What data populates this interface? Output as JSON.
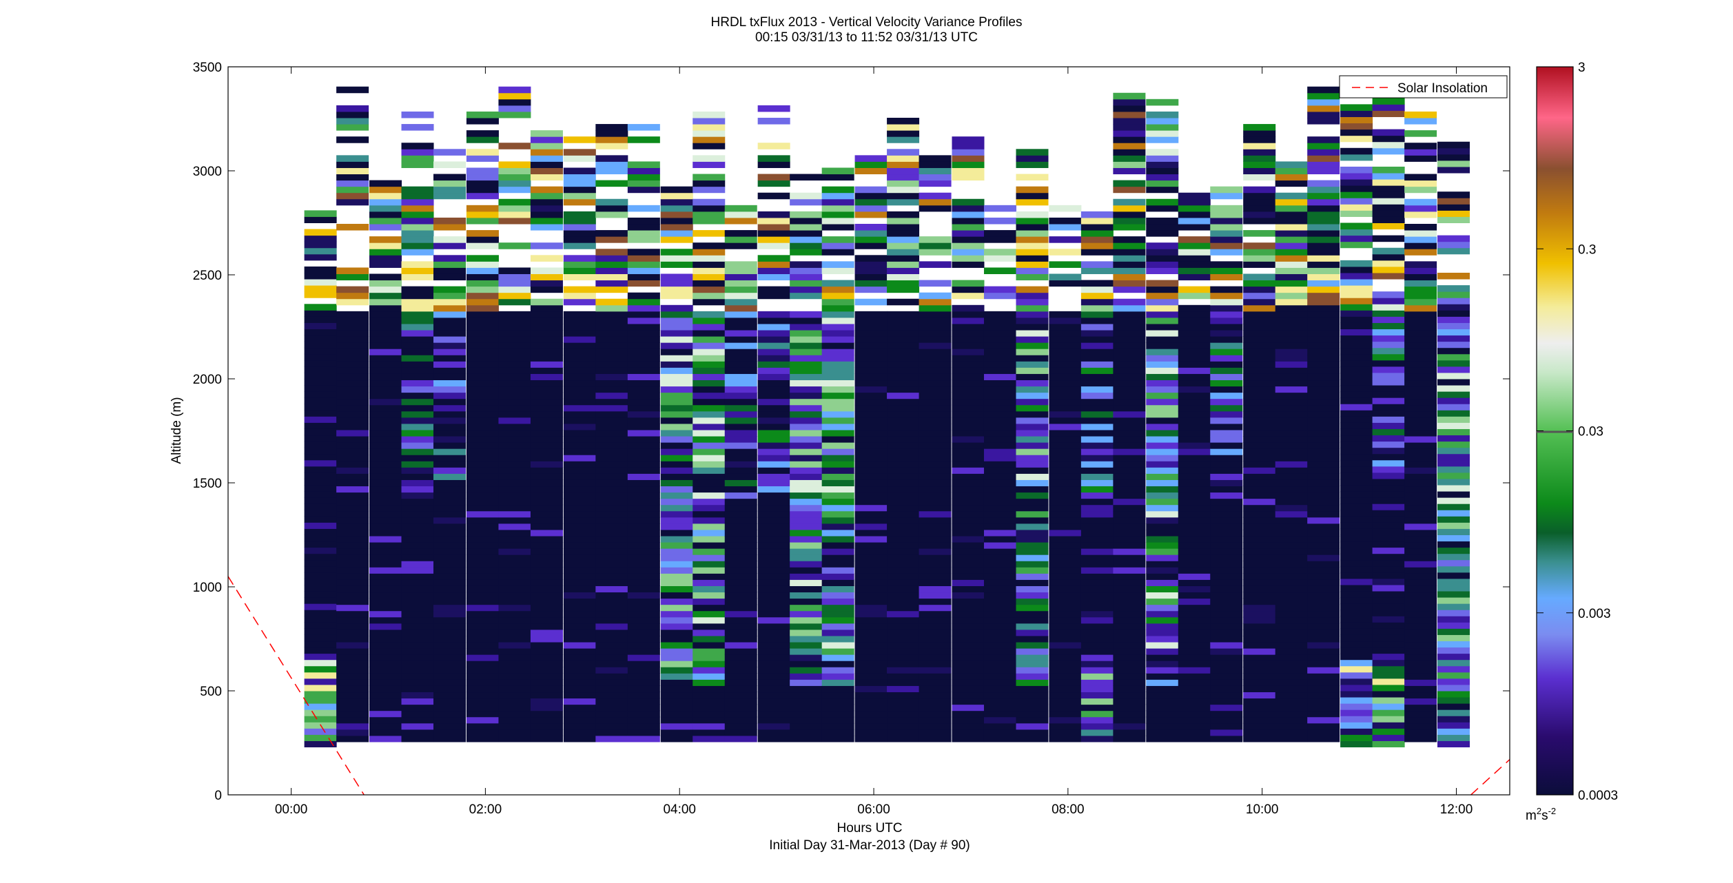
{
  "chart_data": {
    "type": "heatmap",
    "title": "HRDL txFlux 2013 - Vertical Velocity Variance Profiles",
    "subtitle": "00:15 03/31/13 to 11:52 03/31/13  UTC",
    "xlabel": "Hours UTC",
    "xlabel2": "Initial Day 31-Mar-2013 (Day # 90)",
    "ylabel": "Altitude (m)",
    "xlim": [
      -0.65,
      12.55
    ],
    "ylim": [
      0,
      3500
    ],
    "xticks": [
      0,
      2,
      4,
      6,
      8,
      10,
      12
    ],
    "xtick_labels": [
      "00:00",
      "02:00",
      "04:00",
      "06:00",
      "08:00",
      "10:00",
      "12:00"
    ],
    "yticks": [
      0,
      500,
      1000,
      1500,
      2000,
      2500,
      3000,
      3500
    ],
    "ytick_labels": [
      "0",
      "500",
      "1000",
      "1500",
      "2000",
      "2500",
      "3000",
      "3500"
    ],
    "legend": {
      "location": "top-right",
      "entries": [
        {
          "label": "Solar Insolation",
          "color": "#ff0000",
          "style": "dashed"
        }
      ]
    },
    "colorbar": {
      "scale": "log",
      "range": [
        0.0003,
        3
      ],
      "tick_values": [
        0.0003,
        0.003,
        0.03,
        0.3,
        3
      ],
      "tick_labels": [
        "0.0003",
        "0.003",
        "0.03",
        "0.3",
        "3"
      ],
      "unit_base": "m",
      "unit_exp1": "2",
      "unit_mid": "s",
      "unit_exp2": "-2"
    },
    "solar_insolation": [
      {
        "x": [
          -0.65,
          0.75
        ],
        "y": [
          1050,
          0
        ]
      },
      {
        "x": [
          12.15,
          12.55
        ],
        "y": [
          0,
          170
        ]
      }
    ],
    "profile_times_hours": [
      0.3,
      0.63,
      0.97,
      1.3,
      1.63,
      1.97,
      2.3,
      2.63,
      2.97,
      3.3,
      3.63,
      3.97,
      4.3,
      4.63,
      4.97,
      5.3,
      5.63,
      5.97,
      6.3,
      6.63,
      6.97,
      7.3,
      7.63,
      7.97,
      8.3,
      8.63,
      8.97,
      9.3,
      9.63,
      9.97,
      10.3,
      10.63,
      10.97,
      11.3,
      11.63,
      11.97
    ],
    "grid": false
  }
}
